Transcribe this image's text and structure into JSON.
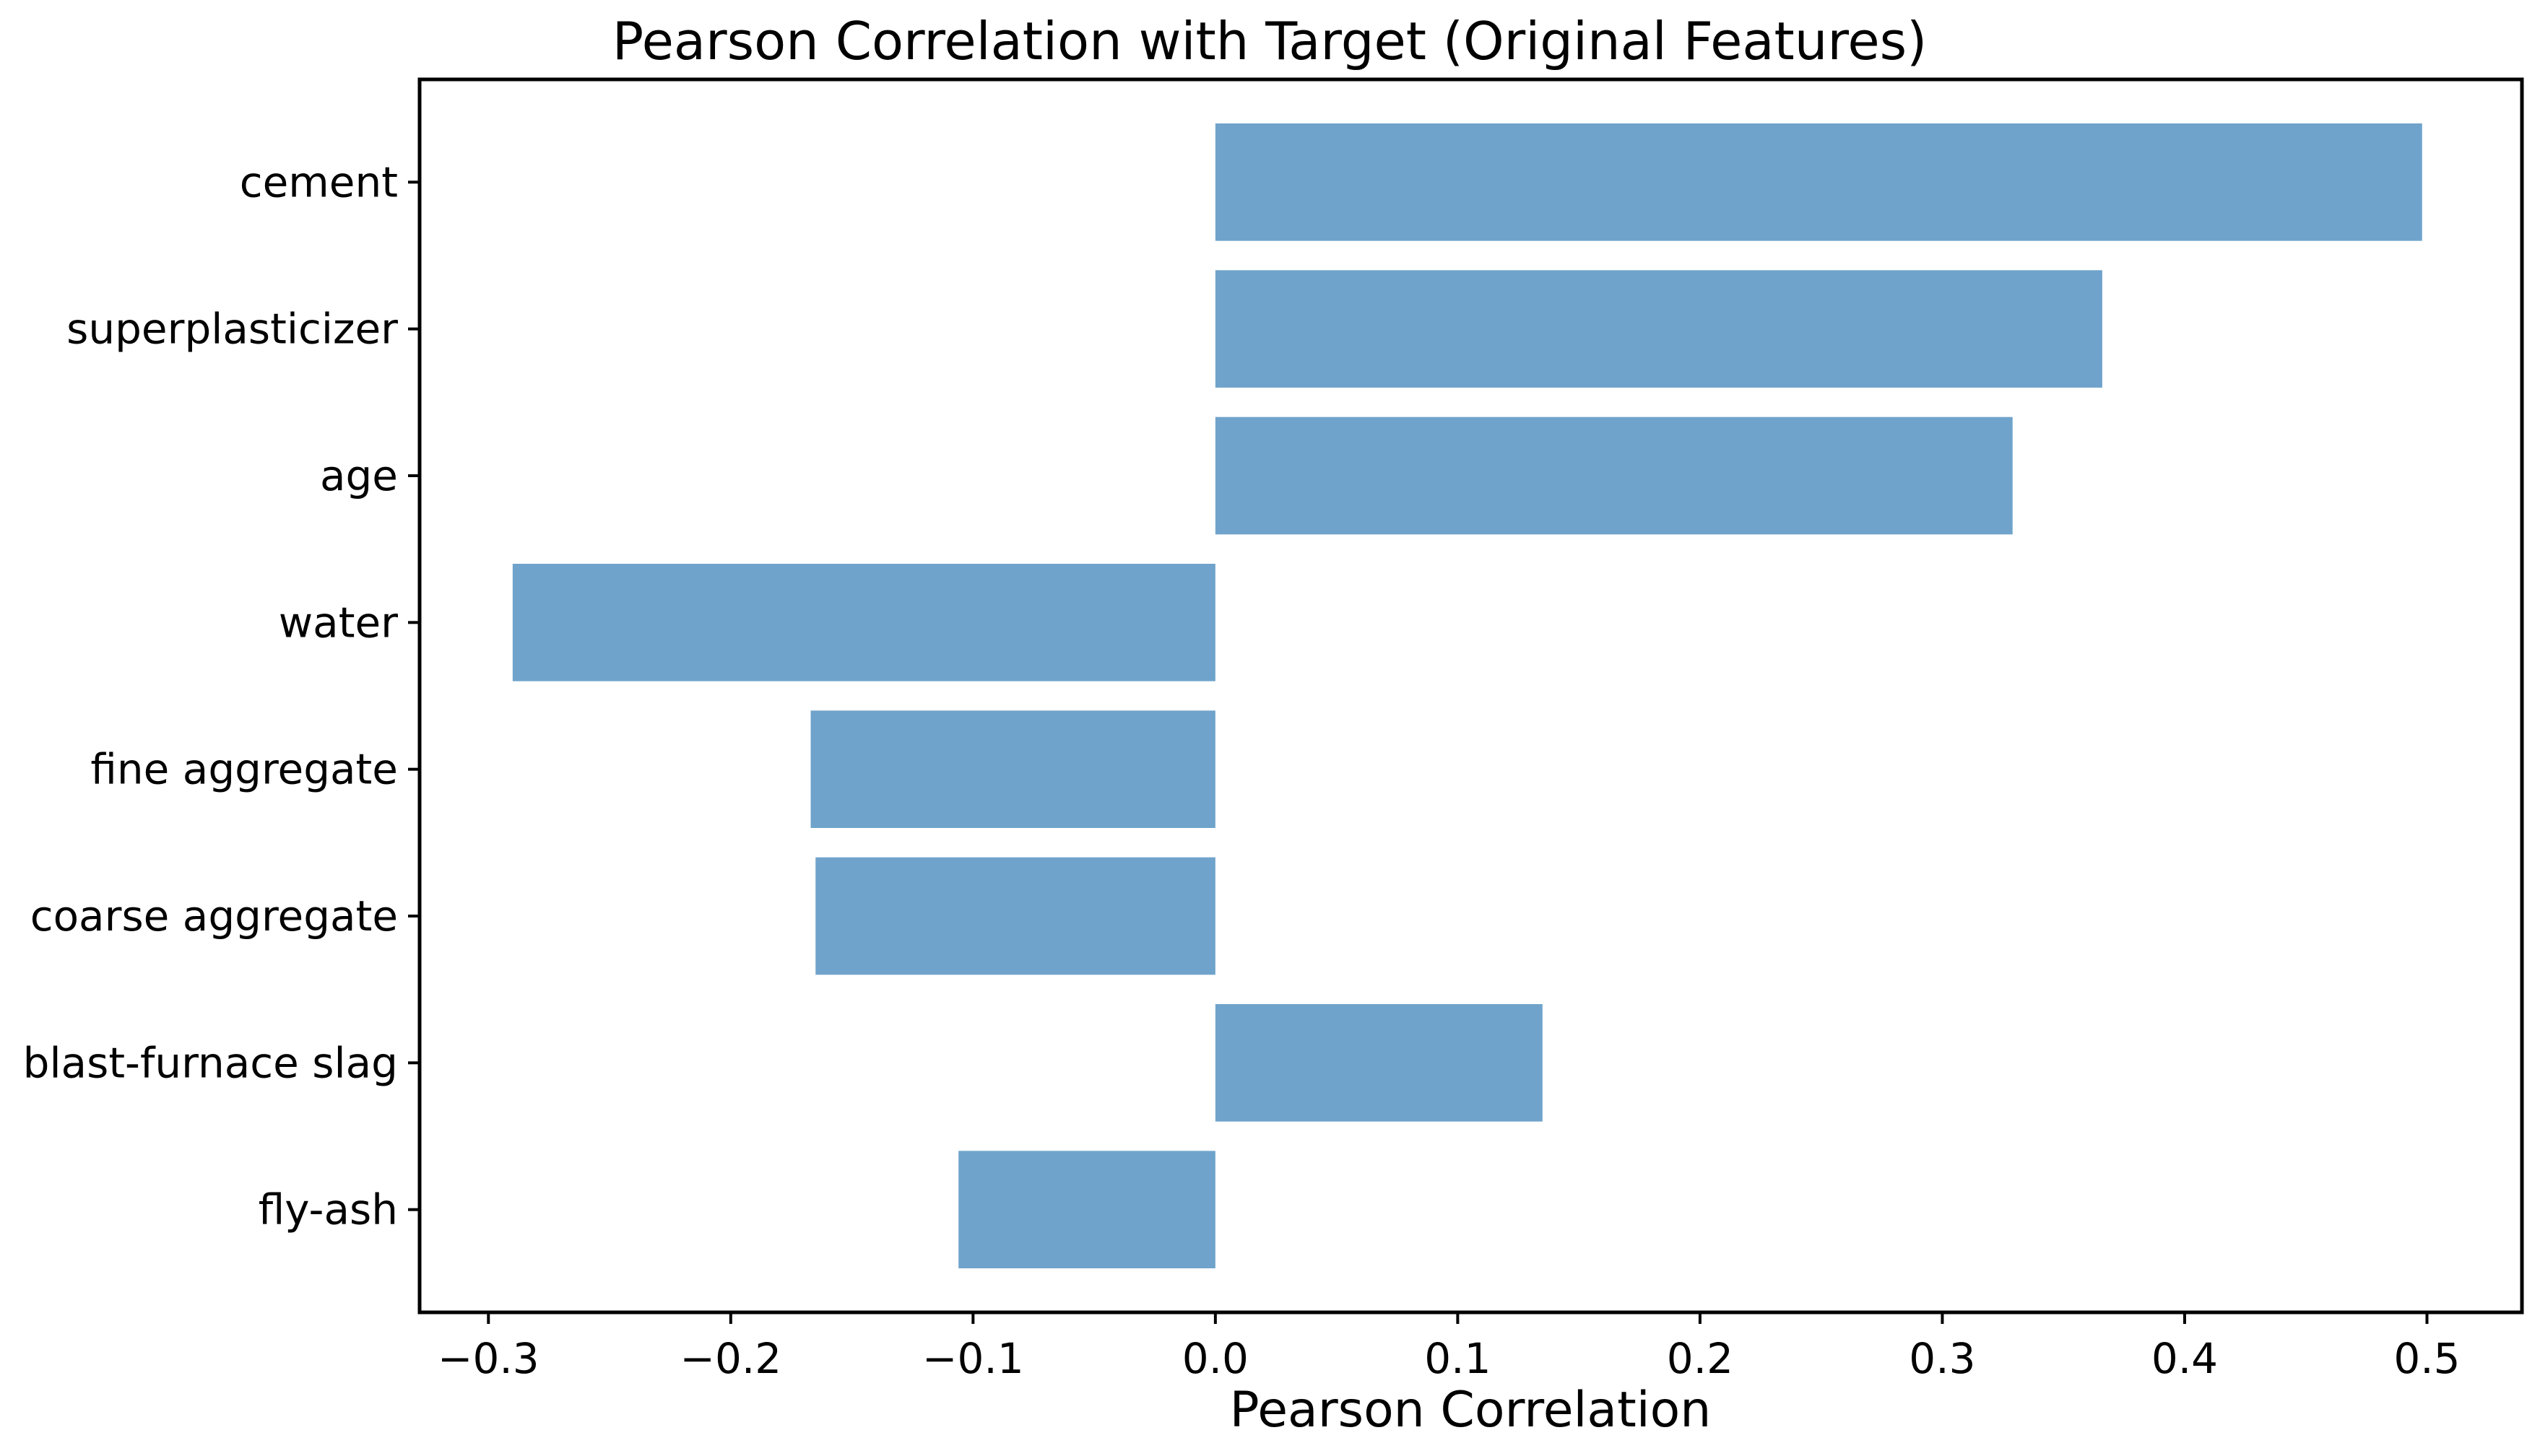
{
  "chart_data": {
    "type": "bar",
    "orientation": "horizontal",
    "title": "Pearson Correlation with Target (Original Features)",
    "xlabel": "Pearson Correlation",
    "ylabel": "",
    "xlim": [
      -0.3284,
      0.5392
    ],
    "xticks": [
      -0.3,
      -0.2,
      -0.1,
      0.0,
      0.1,
      0.2,
      0.3,
      0.4,
      0.5
    ],
    "xtick_labels": [
      "−0.3",
      "−0.2",
      "−0.1",
      "0.0",
      "0.1",
      "0.2",
      "0.3",
      "0.4",
      "0.5"
    ],
    "categories": [
      "cement",
      "superplasticizer",
      "age",
      "water",
      "fine aggregate",
      "coarse aggregate",
      "blast-furnace slag",
      "fly-ash"
    ],
    "values": [
      0.498,
      0.366,
      0.329,
      -0.29,
      -0.167,
      -0.165,
      0.135,
      -0.106
    ],
    "bar_color": "#6fa3cb",
    "grid": false,
    "legend": "none"
  }
}
